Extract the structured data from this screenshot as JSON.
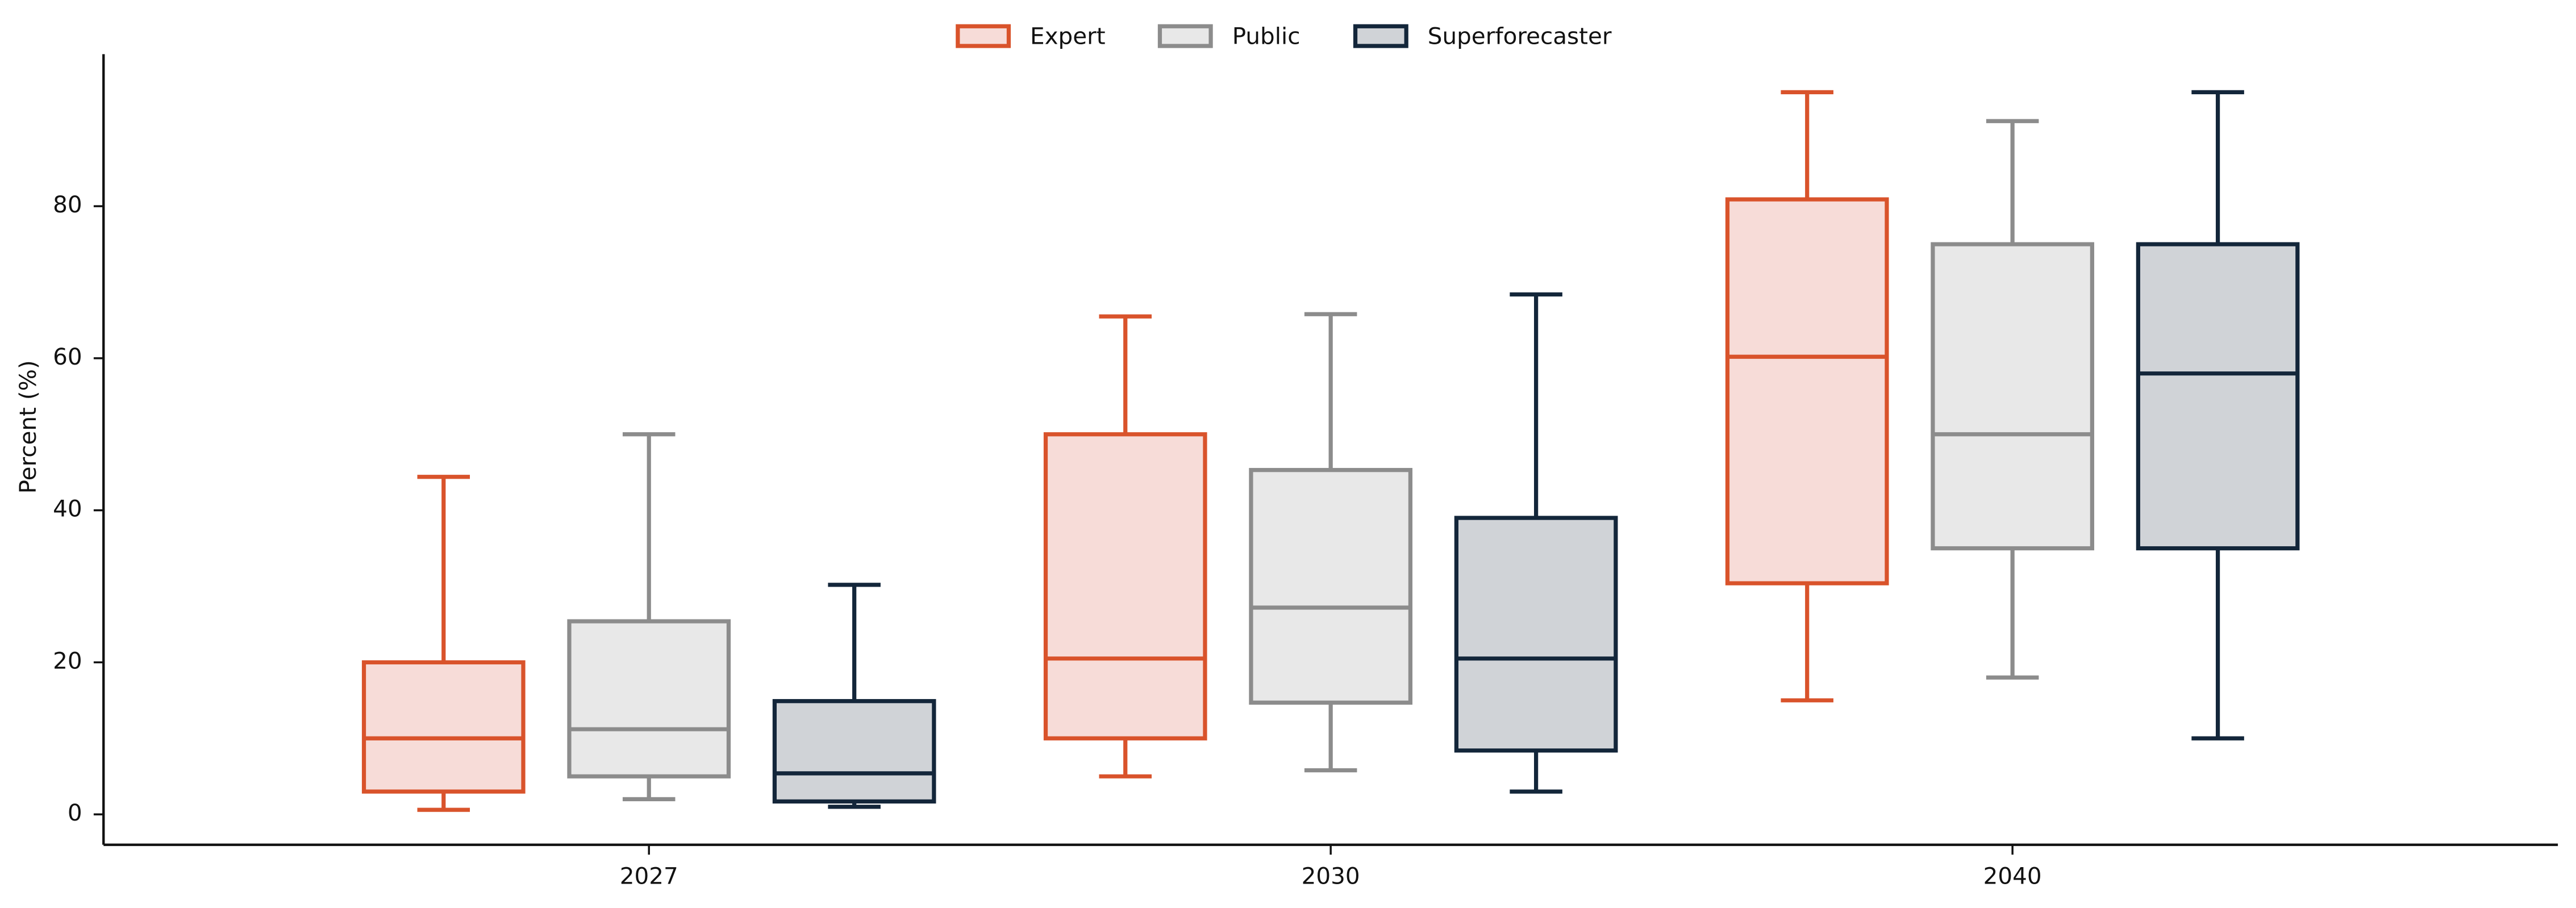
{
  "chart_data": {
    "type": "box",
    "y_label": "Percent (%)",
    "categories": [
      "2027",
      "2030",
      "2040"
    ],
    "ylim": [
      -4,
      100
    ],
    "yticks": [
      0,
      20,
      40,
      60,
      80
    ],
    "legend": "top",
    "series": [
      {
        "name": "Expert",
        "color": "#d9532b",
        "fill": "#f7dcd8",
        "values": [
          {
            "min": 0.6,
            "q1": 3,
            "median": 10,
            "q3": 20,
            "max": 44.4
          },
          {
            "min": 5,
            "q1": 10,
            "median": 20.5,
            "q3": 50,
            "max": 65.5
          },
          {
            "min": 15,
            "q1": 30.4,
            "median": 60.2,
            "q3": 80.9,
            "max": 95
          }
        ]
      },
      {
        "name": "Public",
        "color": "#8c8c8c",
        "fill": "#e8e8e8",
        "values": [
          {
            "min": 2,
            "q1": 5,
            "median": 11.2,
            "q3": 25.4,
            "max": 50
          },
          {
            "min": 5.8,
            "q1": 14.7,
            "median": 27.2,
            "q3": 45.3,
            "max": 65.8
          },
          {
            "min": 18,
            "q1": 35,
            "median": 50,
            "q3": 75,
            "max": 91.2
          }
        ]
      },
      {
        "name": "Superforecaster",
        "color": "#13263a",
        "fill": "#d0d3d7",
        "values": [
          {
            "min": 1,
            "q1": 1.7,
            "median": 5.4,
            "q3": 14.9,
            "max": 30.2
          },
          {
            "min": 3,
            "q1": 8.4,
            "median": 20.5,
            "q3": 39,
            "max": 68.4
          },
          {
            "min": 10,
            "q1": 35,
            "median": 58,
            "q3": 75,
            "max": 95
          }
        ]
      }
    ]
  }
}
